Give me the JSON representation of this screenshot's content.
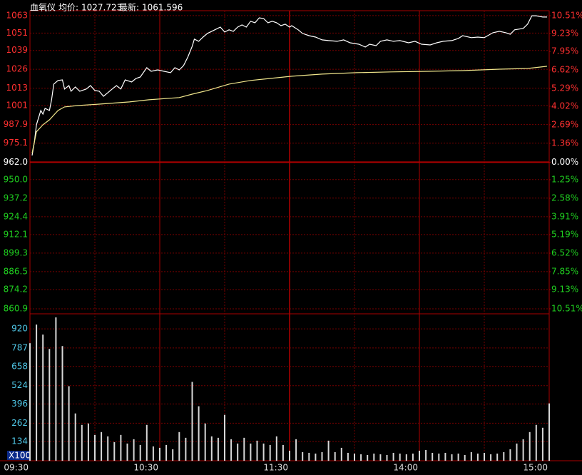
{
  "chart_data": [
    {
      "type": "line",
      "title": "血氧仪",
      "info": [
        {
          "label": "均价:",
          "value": 1027.723
        },
        {
          "label": "最新:",
          "value": 1061.596
        }
      ],
      "xlim": [
        0,
        240
      ],
      "xticks": [
        {
          "value": 0,
          "label": "09:30"
        },
        {
          "value": 60,
          "label": "10:30"
        },
        {
          "value": 120,
          "label": "11:30"
        },
        {
          "value": 180,
          "label": "14:00"
        },
        {
          "value": 240,
          "label": "15:00"
        }
      ],
      "ylim": [
        860.9,
        1066.4
      ],
      "yticks": [
        1063,
        1051,
        1039,
        1026,
        1013,
        1001,
        987.9,
        975.1,
        {
          "value": 962,
          "label": "962.0"
        },
        {
          "value": 950,
          "label": "950.0"
        },
        937.2,
        924.4,
        912.1,
        899.3,
        886.5,
        874.2,
        860.9
      ],
      "y2lim": [
        -10.51,
        10.87
      ],
      "y2ticks": [
        {
          "value": 10.51,
          "label": "10.51%"
        },
        {
          "value": 9.23,
          "label": "9.23%"
        },
        {
          "value": 7.95,
          "label": "7.95%"
        },
        {
          "value": 6.62,
          "label": "6.62%"
        },
        {
          "value": 5.29,
          "label": "5.29%"
        },
        {
          "value": 4.02,
          "label": "4.02%"
        },
        {
          "value": 2.69,
          "label": "2.69%"
        },
        {
          "value": 1.36,
          "label": "1.36%"
        },
        {
          "value": 0,
          "label": "0.00%"
        },
        {
          "value": -1.25,
          "label": "1.25%"
        },
        {
          "value": -2.58,
          "label": "2.58%"
        },
        {
          "value": -3.91,
          "label": "3.91%"
        },
        {
          "value": -5.19,
          "label": "5.19%"
        },
        {
          "value": -6.52,
          "label": "6.52%"
        },
        {
          "value": -7.85,
          "label": "7.85%"
        },
        {
          "value": -9.13,
          "label": "9.13%"
        },
        {
          "value": -10.51,
          "label": "10.51%"
        }
      ],
      "grid": true,
      "series": [
        {
          "color": "#ffffff",
          "x": [
            1,
            2,
            3,
            5,
            6,
            7,
            9,
            10,
            11,
            13,
            15,
            16,
            18,
            19,
            21,
            23,
            26,
            28,
            30,
            32,
            34,
            36,
            38,
            40,
            42,
            44,
            47,
            49,
            51,
            54,
            56,
            59,
            62,
            65,
            67,
            69,
            71,
            73,
            75,
            76,
            78,
            80,
            82,
            84,
            88,
            90,
            92,
            94,
            96,
            98,
            100,
            102,
            104,
            106,
            108,
            110,
            112,
            114,
            116,
            118,
            120,
            121,
            124,
            126,
            129,
            132,
            135,
            138,
            142,
            145,
            148,
            152,
            155,
            157,
            160,
            162,
            165,
            168,
            171,
            175,
            178,
            181,
            185,
            188,
            191,
            195,
            198,
            200,
            204,
            207,
            210,
            214,
            217,
            220,
            222,
            224,
            228,
            230,
            232,
            234,
            237,
            239
          ],
          "values": [
            966.6,
            975.5,
            987.8,
            997.6,
            995.1,
            999.1,
            997.6,
            1005.0,
            1015.8,
            1018.3,
            1018.7,
            1012.4,
            1014.8,
            1010.9,
            1013.8,
            1010.9,
            1012.4,
            1014.8,
            1011.4,
            1010.9,
            1007.4,
            1009.9,
            1012.4,
            1014.8,
            1012.4,
            1018.7,
            1017.3,
            1019.7,
            1020.7,
            1027.1,
            1024.6,
            1025.6,
            1024.6,
            1023.7,
            1027.1,
            1025.6,
            1028.6,
            1034.5,
            1041.9,
            1046.8,
            1045.3,
            1048.2,
            1050.7,
            1052.2,
            1055.1,
            1051.7,
            1053.2,
            1052.2,
            1055.1,
            1056.6,
            1055.1,
            1059.1,
            1058.1,
            1061.5,
            1061.0,
            1058.1,
            1059.1,
            1058.1,
            1056.1,
            1057.1,
            1055.1,
            1056.1,
            1053.2,
            1050.7,
            1049.2,
            1048.2,
            1046.3,
            1045.8,
            1045.3,
            1046.3,
            1044.3,
            1043.3,
            1041.4,
            1043.3,
            1042.3,
            1045.3,
            1046.3,
            1045.3,
            1045.8,
            1044.3,
            1045.3,
            1043.3,
            1042.8,
            1044.3,
            1045.3,
            1045.8,
            1047.3,
            1049.2,
            1047.8,
            1048.2,
            1047.8,
            1051.2,
            1052.2,
            1051.2,
            1050.2,
            1053.2,
            1054.2,
            1057.1,
            1062.9,
            1062.9,
            1062.0,
            1062.0
          ]
        },
        {
          "color": "#f0e68c",
          "x": [
            1,
            3,
            6,
            9,
            13,
            16,
            22,
            32,
            46,
            55,
            69,
            75,
            82,
            92,
            102,
            111,
            121,
            135,
            151,
            167,
            184,
            200,
            217,
            230,
            239
          ],
          "values": [
            968.1,
            982.9,
            987.8,
            991.2,
            997.6,
            1000.1,
            1001.0,
            1002.0,
            1003.5,
            1005.0,
            1006.5,
            1008.9,
            1011.4,
            1015.8,
            1018.3,
            1019.7,
            1021.2,
            1022.7,
            1023.7,
            1024.2,
            1024.6,
            1025.1,
            1026.1,
            1026.6,
            1028.1
          ]
        }
      ]
    },
    {
      "type": "bar",
      "unit": "X100",
      "color": "#d8d8d8",
      "xlim": [
        0,
        240
      ],
      "ylim": [
        0,
        1025
      ],
      "yticks": [
        920,
        787,
        658,
        524,
        396,
        262,
        134
      ],
      "x": [
        0,
        3,
        6,
        9,
        12,
        15,
        18,
        21,
        24,
        27,
        30,
        33,
        36,
        39,
        42,
        45,
        48,
        51,
        54,
        57,
        60,
        63,
        66,
        69,
        72,
        75,
        78,
        81,
        84,
        87,
        90,
        93,
        96,
        99,
        102,
        105,
        108,
        111,
        114,
        117,
        120,
        123,
        126,
        129,
        132,
        135,
        138,
        141,
        144,
        147,
        150,
        153,
        156,
        159,
        162,
        165,
        168,
        171,
        174,
        177,
        180,
        183,
        186,
        189,
        192,
        195,
        198,
        201,
        204,
        207,
        210,
        213,
        216,
        219,
        222,
        225,
        228,
        231,
        234,
        237,
        240
      ],
      "values": [
        820,
        950,
        880,
        780,
        1000,
        800,
        520,
        330,
        250,
        260,
        180,
        200,
        170,
        130,
        180,
        120,
        150,
        110,
        250,
        100,
        90,
        110,
        80,
        200,
        160,
        550,
        380,
        260,
        170,
        160,
        320,
        150,
        120,
        160,
        120,
        140,
        120,
        110,
        170,
        110,
        70,
        150,
        60,
        55,
        50,
        60,
        140,
        60,
        90,
        55,
        50,
        45,
        40,
        50,
        45,
        40,
        55,
        50,
        45,
        50,
        70,
        75,
        55,
        50,
        55,
        45,
        50,
        40,
        60,
        50,
        55,
        45,
        50,
        60,
        80,
        120,
        150,
        200,
        250,
        230,
        400
      ]
    }
  ]
}
